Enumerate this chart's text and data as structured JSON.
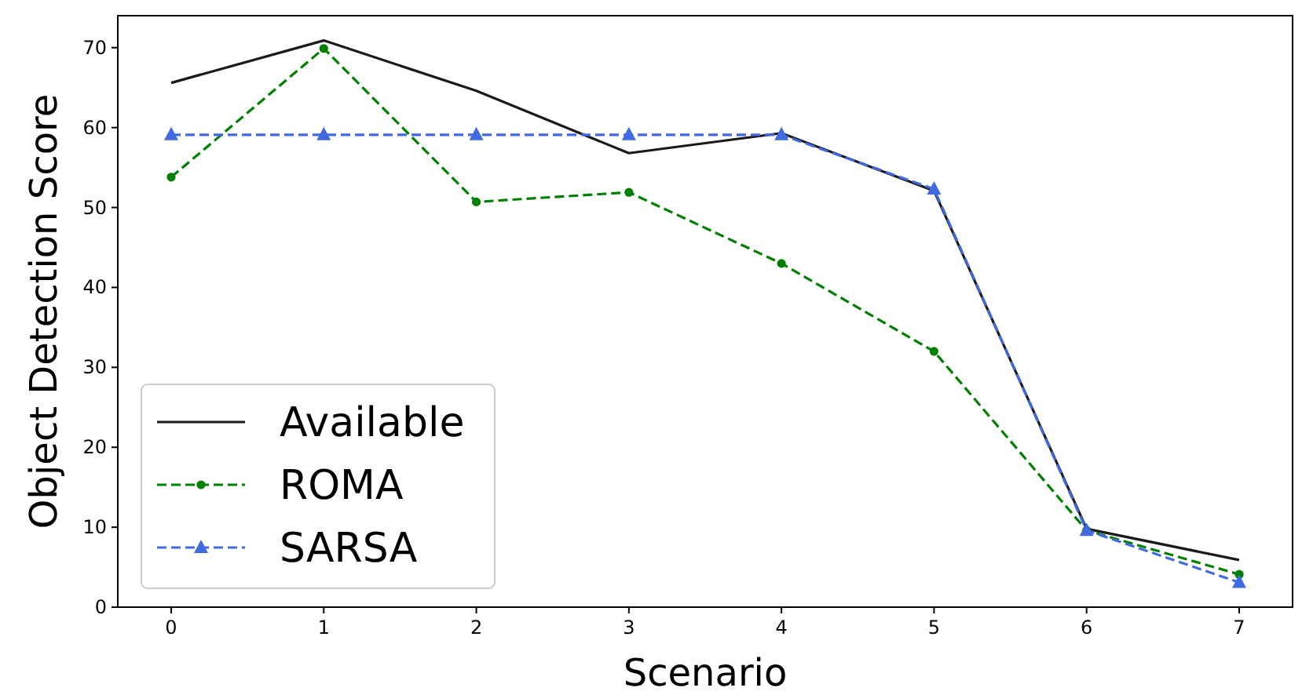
{
  "chart_data": {
    "type": "line",
    "xlabel": "Scenario",
    "ylabel": "Object Detection Score",
    "x": [
      0,
      1,
      2,
      3,
      4,
      5,
      6,
      7
    ],
    "xlim": [
      -0.35,
      7.35
    ],
    "xticks": [
      0,
      1,
      2,
      3,
      4,
      5,
      6,
      7
    ],
    "ylim": [
      0,
      74
    ],
    "yticks": [
      0,
      10,
      20,
      30,
      40,
      50,
      60,
      70
    ],
    "grid": false,
    "legend": "bottom left",
    "series": [
      {
        "name": "Available",
        "color": "#1a1a1a",
        "marker": "none",
        "line_style": "solid",
        "values": [
          65.6,
          70.9,
          64.6,
          56.8,
          59.3,
          52.1,
          9.8,
          5.9
        ]
      },
      {
        "name": "ROMA",
        "color": "#008000",
        "marker": "circle",
        "line_style": "dashed",
        "values": [
          53.8,
          69.9,
          50.7,
          51.9,
          43.0,
          32.0,
          9.6,
          4.1
        ]
      },
      {
        "name": "SARSA",
        "color": "#4169e1",
        "marker": "triangle",
        "line_style": "dashed",
        "values": [
          59.1,
          59.1,
          59.1,
          59.1,
          59.1,
          52.3,
          9.6,
          3.1
        ]
      }
    ]
  }
}
